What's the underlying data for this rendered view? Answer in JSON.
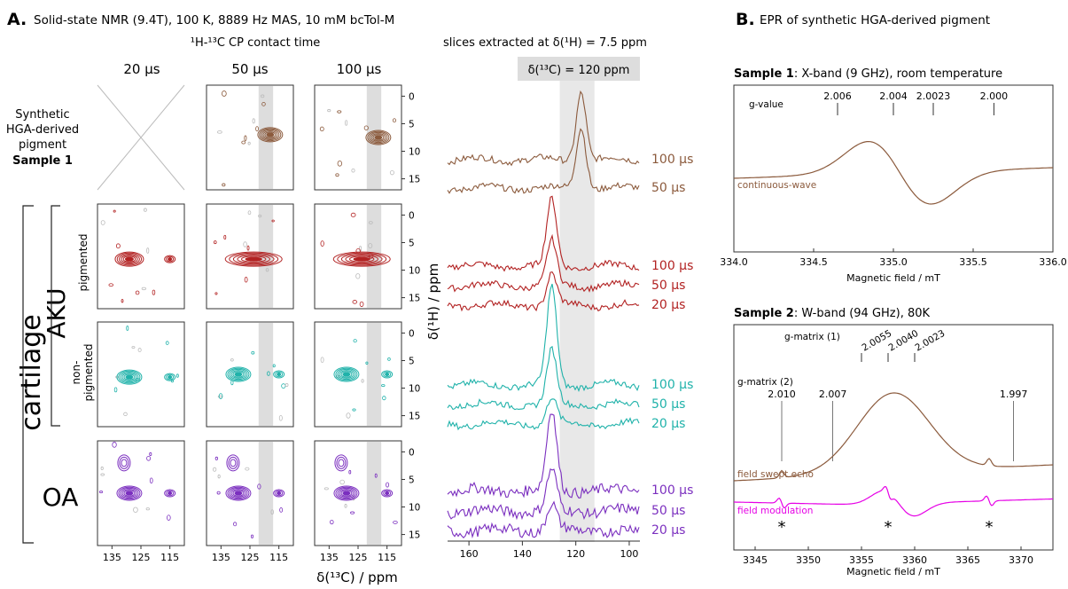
{
  "panel_a": {
    "letter": "A.",
    "title": "Solid-state NMR (9.4T), 100 K, 8889 Hz MAS, 10 mM bcTol-M",
    "contact_time_label": "¹H-¹³C CP contact time",
    "slices_label": "slices extracted at δ(¹H) = 7.5 ppm",
    "highlight_label": "δ(¹³C) = 120 ppm",
    "columns": [
      "20 µs",
      "50 µs",
      "100 µs"
    ],
    "row_labels": {
      "synthetic": [
        "Synthetic",
        "HGA-derived",
        "pigment"
      ],
      "sample1": "Sample 1",
      "cartilage": "cartilage",
      "aku": "AKU",
      "pigmented": "pigmented",
      "non_pigmented": [
        "non-",
        "pigmented"
      ],
      "oa": "OA"
    },
    "x_axis_label": "δ(¹³C) / ppm",
    "y_axis_label": "δ(¹H) / ppm",
    "x_ticks_2d": [
      "135",
      "125",
      "115"
    ],
    "y_ticks_2d": [
      "0",
      "5",
      "10",
      "15"
    ],
    "slice_ticks": [
      "160",
      "140",
      "120",
      "100"
    ]
  },
  "panel_b": {
    "letter": "B.",
    "title": "EPR of synthetic HGA-derived pigment",
    "sample1_title_bold": "Sample 1",
    "sample1_title_rest": ": X-band (9 GHz), room temperature",
    "sample2_title_bold": "Sample 2",
    "sample2_title_rest": ": W-band (94 GHz), 80K",
    "xlabel": "Magnetic field / mT"
  },
  "chart_data": [
    {
      "type": "heatmap",
      "description": "2D 1H-13C CP contour spectra grid (rows: synthetic pigment, AKU pigmented, AKU non-pigmented, OA; columns: 20, 50, 100 µs)",
      "x": {
        "label": "δ(¹³C) / ppm",
        "ticks": [
          135,
          125,
          115
        ],
        "range": [
          140,
          110
        ]
      },
      "y": {
        "label": "δ(¹H) / ppm",
        "ticks": [
          0,
          5,
          10,
          15
        ],
        "range": [
          -2,
          17
        ]
      },
      "highlight_band_ppm": [
        122,
        117
      ],
      "rows": [
        {
          "name": "synthetic",
          "color": "#8b5a3c",
          "cells": [
            null,
            [
              {
                "x": 118,
                "y": 7
              }
            ],
            [
              {
                "x": 118,
                "y": 7.5
              }
            ]
          ]
        },
        {
          "name": "pigmented",
          "color": "#b22222",
          "cells": [
            [
              {
                "x": 129,
                "y": 8
              }
            ],
            [
              {
                "x": 128,
                "y": 8
              }
            ],
            [
              {
                "x": 128,
                "y": 8
              }
            ]
          ]
        },
        {
          "name": "non-pigmented",
          "color": "#20b2aa",
          "cells": [
            [
              {
                "x": 129,
                "y": 8
              }
            ],
            [
              {
                "x": 129,
                "y": 7.5
              }
            ],
            [
              {
                "x": 129,
                "y": 7.5
              }
            ]
          ]
        },
        {
          "name": "OA",
          "color": "#7b2fbf",
          "cells": [
            [
              {
                "x": 129,
                "y": 7.5
              }
            ],
            [
              {
                "x": 129,
                "y": 7.5
              }
            ],
            [
              {
                "x": 129,
                "y": 7.5
              }
            ]
          ]
        }
      ]
    },
    {
      "type": "line",
      "title": "slices extracted at δ(¹H) = 7.5 ppm",
      "xlabel": "δ(¹³C) / ppm",
      "xlim": [
        168,
        96
      ],
      "x_ticks": [
        160,
        140,
        120,
        100
      ],
      "highlight_label": "δ(¹³C) = 120 ppm",
      "groups": [
        {
          "color": "#8b5a3c",
          "series": [
            "100 µs",
            "50 µs"
          ],
          "peak_ppm": 118
        },
        {
          "color": "#b22222",
          "series": [
            "100 µs",
            "50 µs",
            "20 µs"
          ],
          "peak_ppm": 129
        },
        {
          "color": "#20b2aa",
          "series": [
            "100 µs",
            "50 µs",
            "20 µs"
          ],
          "peak_ppm": 129
        },
        {
          "color": "#7b2fbf",
          "series": [
            "100 µs",
            "50 µs",
            "20 µs"
          ],
          "peak_ppm": 129
        }
      ]
    },
    {
      "type": "line",
      "title": "Sample 1: X-band (9 GHz), room temperature",
      "xlabel": "Magnetic field / mT",
      "xlim": [
        334.0,
        336.0
      ],
      "x_ticks": [
        "334.0",
        "334.5",
        "335.0",
        "335.5",
        "336.0"
      ],
      "g_value_label": "g-value",
      "g_values": [
        {
          "label": "2.006",
          "x": 334.65
        },
        {
          "label": "2.004",
          "x": 335.0
        },
        {
          "label": "2.0023",
          "x": 335.25
        },
        {
          "label": "2.000",
          "x": 335.63
        }
      ],
      "series": [
        {
          "name": "continuous-wave",
          "color": "#8b5a3c"
        }
      ]
    },
    {
      "type": "line",
      "title": "Sample 2: W-band (94 GHz), 80K",
      "xlabel": "Magnetic field / mT",
      "xlim": [
        3343,
        3373
      ],
      "x_ticks": [
        "3345",
        "3350",
        "3355",
        "3360",
        "3365",
        "3370"
      ],
      "g_matrix_1_label": "g-matrix (1)",
      "g_matrix_1": [
        {
          "label": "2.0055",
          "x": 3355.0
        },
        {
          "label": "2.0040",
          "x": 3357.5
        },
        {
          "label": "2.0023",
          "x": 3360.0
        }
      ],
      "g_matrix_2_label": "g-matrix (2)",
      "g_matrix_2": [
        {
          "label": "2.010",
          "x": 3347.5
        },
        {
          "label": "2.007",
          "x": 3352.3
        },
        {
          "label": "1.997",
          "x": 3369.3
        }
      ],
      "asterisks": [
        {
          "label": "*",
          "x": 3347.5
        },
        {
          "label": "*",
          "x": 3357.5
        },
        {
          "label": "*",
          "x": 3367.0
        }
      ],
      "series": [
        {
          "name": "field swept echo",
          "color": "#8b5a3c"
        },
        {
          "name": "field modulation",
          "color": "#e600e6"
        }
      ]
    }
  ]
}
